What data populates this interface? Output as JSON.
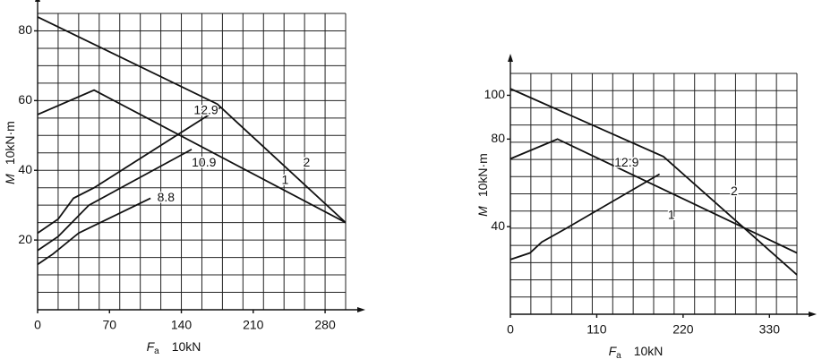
{
  "chart_data": [
    {
      "type": "line",
      "x_symbol": "F",
      "x_subscript": "a",
      "x_unit": "10kN",
      "y_symbol": "M",
      "y_unit": "10kN·m",
      "xlim": [
        0,
        300
      ],
      "ylim": [
        0,
        85
      ],
      "xticks": [
        0,
        70,
        140,
        210,
        280
      ],
      "yticks": [
        20,
        40,
        60,
        80
      ],
      "grid": true,
      "grid_cells": [
        15,
        17
      ],
      "color": "#111111",
      "series": [
        {
          "name": "2",
          "x": [
            0,
            175,
            300
          ],
          "values": [
            84,
            59,
            25
          ]
        },
        {
          "name": "1",
          "x": [
            0,
            55,
            300
          ],
          "values": [
            56,
            63,
            25
          ]
        },
        {
          "name": "12.9",
          "x": [
            0,
            20,
            35,
            55,
            178
          ],
          "values": [
            22,
            26,
            32,
            35,
            58
          ]
        },
        {
          "name": "10.9",
          "x": [
            0,
            20,
            50,
            150
          ],
          "values": [
            17,
            21,
            30,
            46
          ]
        },
        {
          "name": "8.8",
          "x": [
            0,
            15,
            40,
            110
          ],
          "values": [
            13,
            16,
            22,
            32
          ]
        }
      ],
      "annotations": [
        {
          "text": "12.9",
          "x": 164,
          "y": 57
        },
        {
          "text": "10.9",
          "x": 162,
          "y": 42
        },
        {
          "text": "8.8",
          "x": 125,
          "y": 32
        },
        {
          "text": "1",
          "x": 241,
          "y": 37
        },
        {
          "text": "2",
          "x": 262,
          "y": 42
        }
      ]
    },
    {
      "type": "line",
      "x_symbol": "F",
      "x_subscript": "a",
      "x_unit": "10kN",
      "y_symbol": "M",
      "y_unit": "10kN·m",
      "xlim": [
        0,
        365
      ],
      "ylim": [
        0,
        110
      ],
      "xticks": [
        0,
        110,
        220,
        330
      ],
      "yticks": [
        40,
        80,
        100
      ],
      "grid": true,
      "grid_cells": [
        14,
        14
      ],
      "color": "#111111",
      "series": [
        {
          "name": "2",
          "x": [
            0,
            195,
            365
          ],
          "values": [
            103,
            72,
            18
          ]
        },
        {
          "name": "1",
          "x": [
            0,
            60,
            365
          ],
          "values": [
            71,
            80,
            28
          ]
        },
        {
          "name": "12.9",
          "x": [
            0,
            25,
            40,
            70,
            190
          ],
          "values": [
            25,
            28,
            33,
            39,
            64
          ]
        }
      ],
      "annotations": [
        {
          "text": "12.9",
          "x": 148,
          "y": 69
        },
        {
          "text": "1",
          "x": 205,
          "y": 45
        },
        {
          "text": "2",
          "x": 285,
          "y": 56
        }
      ]
    }
  ]
}
